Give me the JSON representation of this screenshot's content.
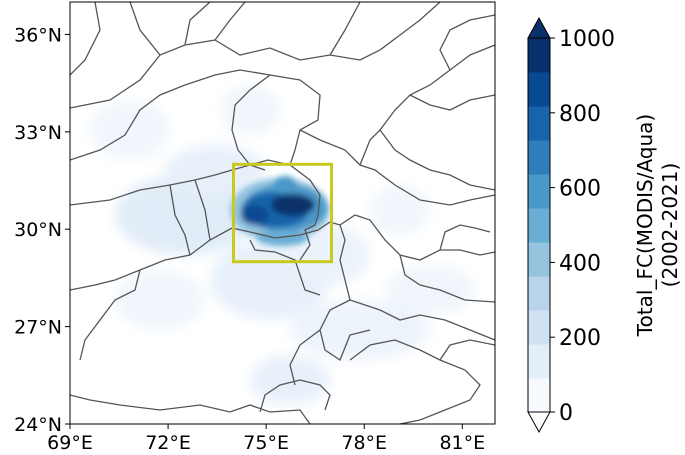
{
  "map": {
    "lon_range": [
      69,
      82
    ],
    "lat_range": [
      24,
      37
    ],
    "x_ticks": [
      {
        "value": 69,
        "label": "69°E"
      },
      {
        "value": 72,
        "label": "72°E"
      },
      {
        "value": 75,
        "label": "75°E"
      },
      {
        "value": 78,
        "label": "78°E"
      },
      {
        "value": 81,
        "label": "81°E"
      }
    ],
    "y_ticks": [
      {
        "value": 24,
        "label": "24°N"
      },
      {
        "value": 27,
        "label": "27°N"
      },
      {
        "value": 30,
        "label": "30°N"
      },
      {
        "value": 33,
        "label": "33°N"
      },
      {
        "value": 36,
        "label": "36°N"
      }
    ],
    "highlight_box": {
      "lon_min": 74,
      "lon_max": 77,
      "lat_min": 29,
      "lat_max": 32,
      "color": "#c8c81e"
    }
  },
  "colorbar": {
    "title_line1": "Total_FC(MODIS/Aqua)",
    "title_line2": "(2002-2021)",
    "min": 0,
    "max": 1000,
    "ticks": [
      {
        "value": 0,
        "label": "0"
      },
      {
        "value": 200,
        "label": "200"
      },
      {
        "value": 400,
        "label": "400"
      },
      {
        "value": 600,
        "label": "600"
      },
      {
        "value": 800,
        "label": "800"
      },
      {
        "value": 1000,
        "label": "1000"
      }
    ],
    "colors": [
      "#f7fbff",
      "#e3eef9",
      "#d0e1f2",
      "#b7d4ea",
      "#94c4df",
      "#6aaed6",
      "#4a98c9",
      "#2e7ebc",
      "#1764ab",
      "#084a91",
      "#08306b"
    ]
  }
}
